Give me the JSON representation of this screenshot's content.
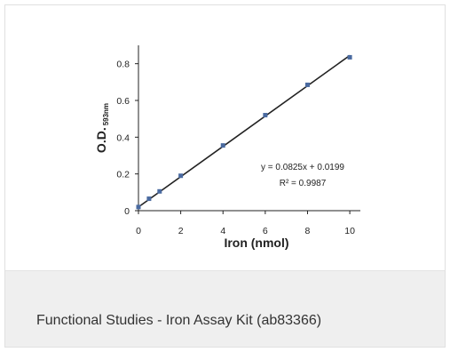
{
  "caption": "Functional Studies - Iron Assay Kit (ab83366)",
  "chart_data": {
    "type": "scatter",
    "title": "",
    "xlabel": "Iron (nmol)",
    "ylabel_main": "O.D.",
    "ylabel_sub": "593nm",
    "xlim": [
      0,
      10.5
    ],
    "ylim": [
      0,
      0.9
    ],
    "x_ticks": [
      "0",
      "2",
      "4",
      "6",
      "8",
      "10"
    ],
    "y_ticks": [
      "0",
      "0.2",
      "0.4",
      "0.6",
      "0.8"
    ],
    "grid": false,
    "points": [
      {
        "x": 0,
        "y": 0.02
      },
      {
        "x": 0.5,
        "y": 0.065
      },
      {
        "x": 1,
        "y": 0.105
      },
      {
        "x": 2,
        "y": 0.19
      },
      {
        "x": 4,
        "y": 0.355
      },
      {
        "x": 6,
        "y": 0.52
      },
      {
        "x": 8,
        "y": 0.685
      },
      {
        "x": 10,
        "y": 0.835
      }
    ],
    "trendline": {
      "slope": 0.0825,
      "intercept": 0.0199,
      "x_range": [
        0,
        10
      ]
    },
    "equation": "y = 0.0825x + 0.0199",
    "r_squared": "R² = 0.9987",
    "colors": {
      "points": "#4a6aa0",
      "line": "#222222",
      "axis": "#222222"
    }
  }
}
